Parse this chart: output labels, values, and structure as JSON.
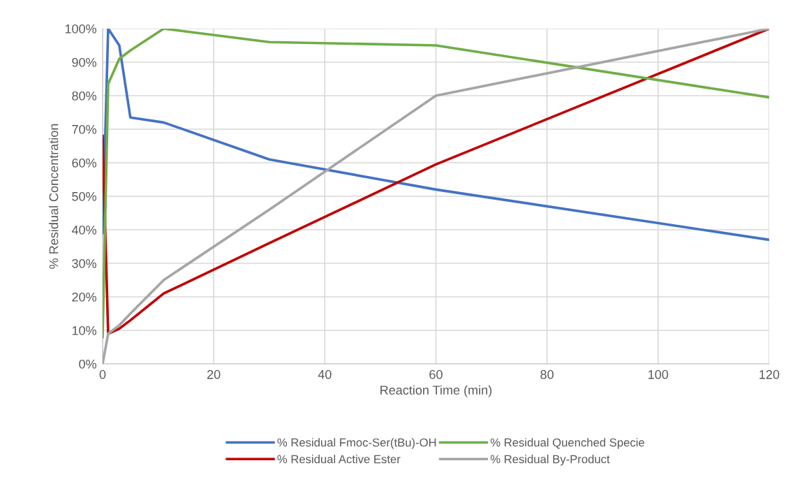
{
  "chart_data": {
    "type": "line",
    "xlabel": "Reaction Time (min)",
    "ylabel": "% Residual Concentration",
    "x": [
      0,
      1,
      3,
      5,
      11,
      30,
      60,
      120
    ],
    "series": [
      {
        "name": "% Residual Fmoc-Ser(tBu)-OH",
        "color": "#4472c4",
        "values": [
          39,
          100,
          95,
          73.5,
          72,
          61,
          52,
          37
        ]
      },
      {
        "name": "% Residual Active Ester",
        "color": "#c00000",
        "values": [
          68,
          9,
          10.5,
          13,
          21,
          36,
          59.5,
          100
        ]
      },
      {
        "name": "% Residual Quenched Specie",
        "color": "#70ad47",
        "values": [
          8,
          83.5,
          91,
          93.5,
          100,
          96,
          95,
          79.5
        ]
      },
      {
        "name": "% Residual By-Product",
        "color": "#a5a5a5",
        "values": [
          0,
          9,
          11.5,
          15,
          25,
          46,
          80,
          100
        ]
      }
    ],
    "xlim": [
      0,
      120
    ],
    "xticks": [
      0,
      20,
      40,
      60,
      80,
      100,
      120
    ],
    "ylim": [
      0,
      100
    ],
    "yticks": [
      {
        "value": 0,
        "label": "0%"
      },
      {
        "value": 10,
        "label": "10%"
      },
      {
        "value": 20,
        "label": "20%"
      },
      {
        "value": 30,
        "label": "30%"
      },
      {
        "value": 40,
        "label": "40%"
      },
      {
        "value": 50,
        "label": "50%"
      },
      {
        "value": 60,
        "label": "60%"
      },
      {
        "value": 70,
        "label": "70%"
      },
      {
        "value": 80,
        "label": "80%"
      },
      {
        "value": 90,
        "label": "90%"
      },
      {
        "value": 100,
        "label": "100%"
      }
    ],
    "grid": true,
    "legend": "bottom",
    "marker": "none",
    "line_style": "solid"
  }
}
